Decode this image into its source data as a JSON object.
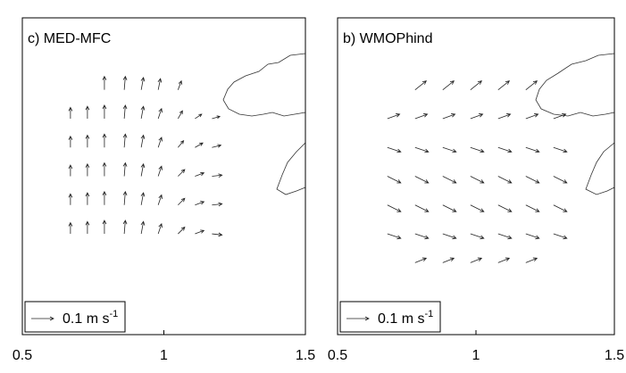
{
  "chart_data": [
    {
      "type": "quiver",
      "title": "c) MED-MFC",
      "xlim": [
        0.5,
        1.5
      ],
      "xticks": [
        0.5,
        1,
        1.5
      ],
      "ylim": [
        0,
        1.1
      ],
      "key_value": 0.1,
      "key_label": "0.1 m s",
      "key_label_sup": "-1",
      "x": [
        0.67,
        0.73,
        0.79,
        0.86,
        0.92,
        0.98,
        1.05,
        1.11,
        1.17,
        0.67,
        0.73,
        0.79,
        0.86,
        0.92,
        0.98,
        1.05,
        1.11,
        1.17,
        0.67,
        0.73,
        0.79,
        0.86,
        0.92,
        0.98,
        1.05,
        1.11,
        1.17,
        0.67,
        0.73,
        0.79,
        0.86,
        0.92,
        0.98,
        1.05,
        1.11,
        1.17,
        0.67,
        0.73,
        0.79,
        0.86,
        0.92,
        0.98,
        1.05,
        1.11,
        1.17,
        0.79,
        0.86,
        0.92,
        0.98,
        1.05
      ],
      "y": [
        0.35,
        0.35,
        0.35,
        0.35,
        0.35,
        0.35,
        0.35,
        0.35,
        0.35,
        0.45,
        0.45,
        0.45,
        0.45,
        0.45,
        0.45,
        0.45,
        0.45,
        0.45,
        0.55,
        0.55,
        0.55,
        0.55,
        0.55,
        0.55,
        0.55,
        0.55,
        0.55,
        0.65,
        0.65,
        0.65,
        0.65,
        0.65,
        0.65,
        0.65,
        0.65,
        0.65,
        0.75,
        0.75,
        0.75,
        0.75,
        0.75,
        0.75,
        0.75,
        0.75,
        0.75,
        0.85,
        0.85,
        0.85,
        0.85,
        0.85
      ],
      "u": [
        0,
        0,
        0,
        0.005,
        0.01,
        0.015,
        0.03,
        0.04,
        0.045,
        0,
        0,
        0,
        0.005,
        0.01,
        0.015,
        0.03,
        0.04,
        0.045,
        0,
        0,
        0,
        0.005,
        0.01,
        0.015,
        0.03,
        0.04,
        0.045,
        0,
        0,
        0,
        0.005,
        0.01,
        0.015,
        0.025,
        0.035,
        0.04,
        0,
        0,
        0,
        0.005,
        0.01,
        0.015,
        0.02,
        0.03,
        0.035,
        0,
        0.005,
        0.01,
        0.01,
        0.015
      ],
      "v": [
        0.05,
        0.055,
        0.06,
        0.06,
        0.055,
        0.045,
        0.03,
        0.015,
        -0.005,
        0.05,
        0.055,
        0.06,
        0.06,
        0.055,
        0.045,
        0.03,
        0.015,
        0.005,
        0.05,
        0.055,
        0.06,
        0.06,
        0.055,
        0.045,
        0.03,
        0.015,
        0.005,
        0.05,
        0.055,
        0.06,
        0.06,
        0.055,
        0.045,
        0.03,
        0.02,
        0.01,
        0.05,
        0.055,
        0.06,
        0.06,
        0.055,
        0.045,
        0.035,
        0.02,
        0.01,
        0.06,
        0.06,
        0.055,
        0.05,
        0.04
      ]
    },
    {
      "type": "quiver",
      "title": "b) WMOPhind",
      "xlim": [
        0.5,
        1.5
      ],
      "xticks": [
        0.5,
        1,
        1.5
      ],
      "ylim": [
        0,
        1.1
      ],
      "key_value": 0.1,
      "key_label": "0.1 m s",
      "key_label_sup": "-1",
      "x": [
        0.78,
        0.88,
        0.98,
        1.08,
        1.18,
        0.68,
        0.78,
        0.88,
        0.98,
        1.08,
        1.18,
        1.28,
        0.68,
        0.78,
        0.88,
        0.98,
        1.08,
        1.18,
        1.28,
        0.68,
        0.78,
        0.88,
        0.98,
        1.08,
        1.18,
        1.28,
        0.68,
        0.78,
        0.88,
        0.98,
        1.08,
        1.18,
        1.28,
        0.68,
        0.78,
        0.88,
        0.98,
        1.08,
        1.18,
        1.28,
        0.78,
        0.88,
        0.98,
        1.08,
        1.18
      ],
      "y": [
        0.85,
        0.85,
        0.85,
        0.85,
        0.85,
        0.75,
        0.75,
        0.75,
        0.75,
        0.75,
        0.75,
        0.75,
        0.65,
        0.65,
        0.65,
        0.65,
        0.65,
        0.65,
        0.65,
        0.55,
        0.55,
        0.55,
        0.55,
        0.55,
        0.55,
        0.55,
        0.45,
        0.45,
        0.45,
        0.45,
        0.45,
        0.45,
        0.45,
        0.35,
        0.35,
        0.35,
        0.35,
        0.35,
        0.35,
        0.35,
        0.25,
        0.25,
        0.25,
        0.25,
        0.25
      ],
      "u": [
        0.05,
        0.05,
        0.05,
        0.05,
        0.05,
        0.055,
        0.055,
        0.055,
        0.055,
        0.055,
        0.055,
        0.055,
        0.06,
        0.06,
        0.06,
        0.06,
        0.06,
        0.06,
        0.06,
        0.06,
        0.06,
        0.06,
        0.06,
        0.06,
        0.06,
        0.06,
        0.06,
        0.06,
        0.06,
        0.06,
        0.06,
        0.06,
        0.06,
        0.06,
        0.06,
        0.06,
        0.06,
        0.06,
        0.06,
        0.06,
        0.05,
        0.05,
        0.05,
        0.05,
        0.05
      ],
      "v": [
        0.04,
        0.04,
        0.04,
        0.04,
        0.04,
        0.02,
        0.02,
        0.02,
        0.02,
        0.02,
        0.02,
        0.02,
        -0.02,
        -0.02,
        -0.02,
        -0.02,
        -0.02,
        -0.02,
        -0.02,
        -0.03,
        -0.03,
        -0.03,
        -0.03,
        -0.03,
        -0.03,
        -0.03,
        -0.03,
        -0.03,
        -0.03,
        -0.03,
        -0.03,
        -0.03,
        -0.03,
        -0.02,
        -0.02,
        -0.02,
        -0.02,
        -0.02,
        -0.02,
        -0.02,
        0.02,
        0.02,
        0.02,
        0.02,
        0.02
      ]
    }
  ]
}
